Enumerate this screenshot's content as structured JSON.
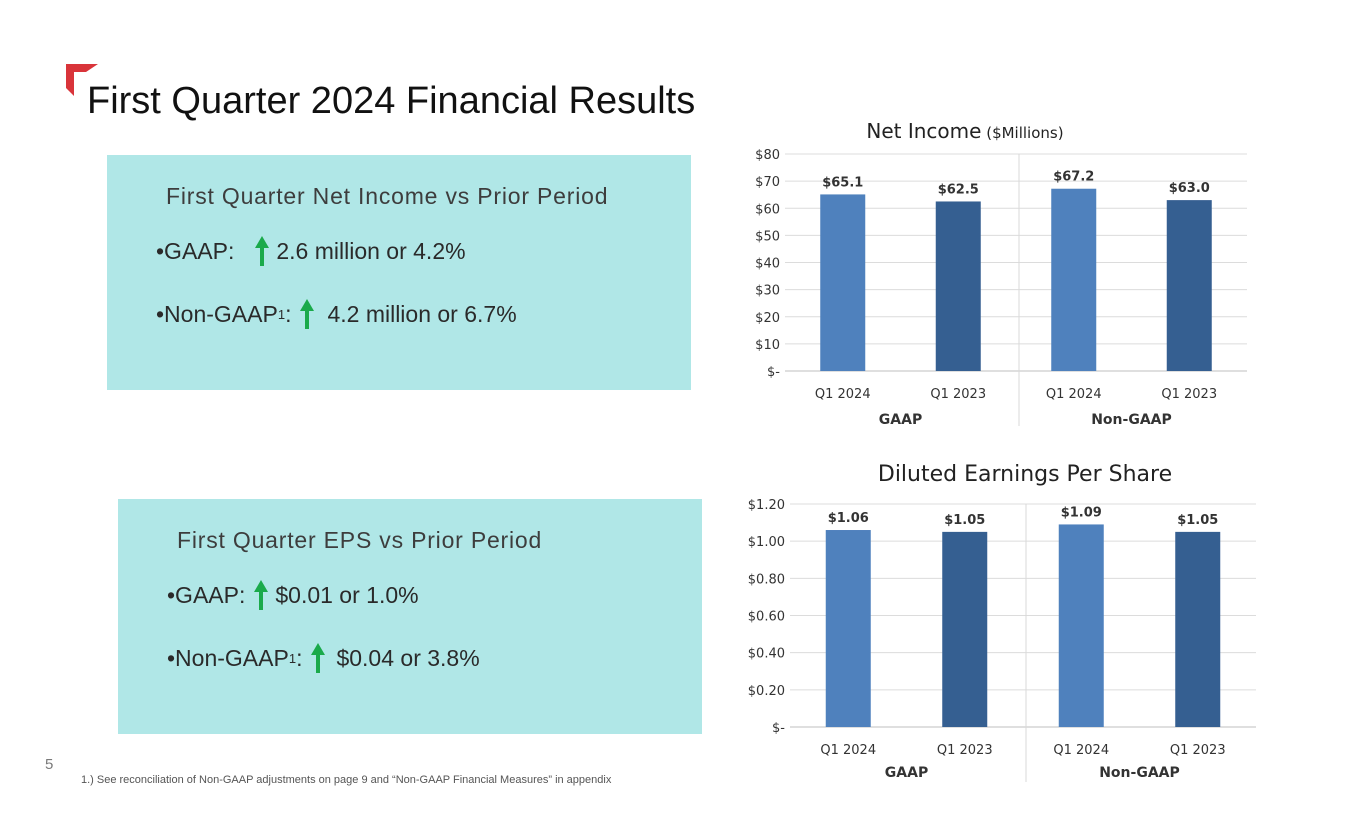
{
  "page": {
    "title": "First Quarter 2024 Financial Results",
    "page_number": "5",
    "footnote": "1.) See reconciliation of Non-GAAP adjustments on page 9 and “Non-GAAP Financial Measures” in appendix",
    "accent_color": "#d9343a",
    "box_color": "#b0e7e7",
    "arrow_color": "#1aaa4b"
  },
  "box_net_income": {
    "title": "First Quarter Net Income vs Prior Period",
    "gaap_label": "•GAAP:",
    "gaap_value": "2.6 million or 4.2%",
    "nongaap_label": "•Non-GAAP",
    "nongaap_sup": "1",
    "nongaap_colon": ":",
    "nongaap_value": "4.2 million or 6.7%",
    "icon": "up-arrow-icon"
  },
  "box_eps": {
    "title": "First Quarter EPS vs Prior Period",
    "gaap_label": "•GAAP:",
    "gaap_value": "$0.01 or 1.0%",
    "nongaap_label": "•Non-GAAP",
    "nongaap_sup": "1",
    "nongaap_colon": ":",
    "nongaap_value": "$0.04 or 3.8%",
    "icon": "up-arrow-icon"
  },
  "chart_data": [
    {
      "type": "bar",
      "title": "Net Income",
      "subtitle": "($Millions)",
      "categories": [
        "Q1 2024",
        "Q1 2023",
        "Q1 2024",
        "Q1 2023"
      ],
      "groups": [
        "GAAP",
        "Non-GAAP"
      ],
      "values": [
        65.1,
        62.5,
        67.2,
        63.0
      ],
      "labels": [
        "$65.1",
        "$62.5",
        "$67.2",
        "$63.0"
      ],
      "ylim": [
        0,
        80
      ],
      "yticks": [
        0,
        10,
        20,
        30,
        40,
        50,
        60,
        70,
        80
      ],
      "ytick_labels": [
        "$-",
        "$10",
        "$20",
        "$30",
        "$40",
        "$50",
        "$60",
        "$70",
        "$80"
      ],
      "colors": [
        "#4f81bd",
        "#355f91",
        "#4f81bd",
        "#355f91"
      ],
      "grid": true,
      "legend": "none"
    },
    {
      "type": "bar",
      "title": "Diluted Earnings Per Share",
      "subtitle": "",
      "categories": [
        "Q1 2024",
        "Q1 2023",
        "Q1 2024",
        "Q1 2023"
      ],
      "groups": [
        "GAAP",
        "Non-GAAP"
      ],
      "values": [
        1.06,
        1.05,
        1.09,
        1.05
      ],
      "labels": [
        "$1.06",
        "$1.05",
        "$1.09",
        "$1.05"
      ],
      "ylim": [
        0,
        1.2
      ],
      "yticks": [
        0,
        0.2,
        0.4,
        0.6,
        0.8,
        1.0,
        1.2
      ],
      "ytick_labels": [
        "$-",
        "$0.20",
        "$0.40",
        "$0.60",
        "$0.80",
        "$1.00",
        "$1.20"
      ],
      "colors": [
        "#4f81bd",
        "#355f91",
        "#4f81bd",
        "#355f91"
      ],
      "grid": true,
      "legend": "none"
    }
  ]
}
